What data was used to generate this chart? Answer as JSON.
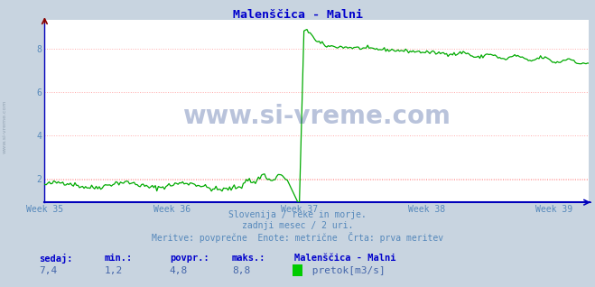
{
  "title": "Malenščica - Malni",
  "bg_color": "#c8d4e0",
  "plot_bg_color": "#ffffff",
  "line_color": "#00aa00",
  "grid_color_white": "#ffffff",
  "grid_color_pink": "#ffaaaa",
  "axis_color": "#0000bb",
  "text_color": "#5588bb",
  "title_color": "#0000cc",
  "footer_label_color": "#0000cc",
  "footer_value_color": "#4466aa",
  "ylim": [
    0.9,
    9.3
  ],
  "yticks": [
    2,
    4,
    6,
    8
  ],
  "week_labels": [
    "Week 35",
    "Week 36",
    "Week 37",
    "Week 38",
    "Week 39"
  ],
  "week_positions": [
    0,
    84,
    168,
    252,
    336
  ],
  "total_points": 360,
  "subtitle1": "Slovenija / reke in morje.",
  "subtitle2": "zadnji mesec / 2 uri.",
  "subtitle3": "Meritve: povprečne  Enote: metrične  Črta: prva meritev",
  "footer_labels": [
    "sedaj:",
    "min.:",
    "povpr.:",
    "maks.:",
    "Malenščica - Malni"
  ],
  "footer_values": [
    "7,4",
    "1,2",
    "4,8",
    "8,8"
  ],
  "legend_label": " pretok[m3/s]",
  "legend_color": "#00cc00",
  "watermark_text": "www.si-vreme.com",
  "watermark_color": "#1a3a8a",
  "side_watermark_color": "#8899aa",
  "avg_val": 1.9,
  "dashed_line_val": 1.95
}
